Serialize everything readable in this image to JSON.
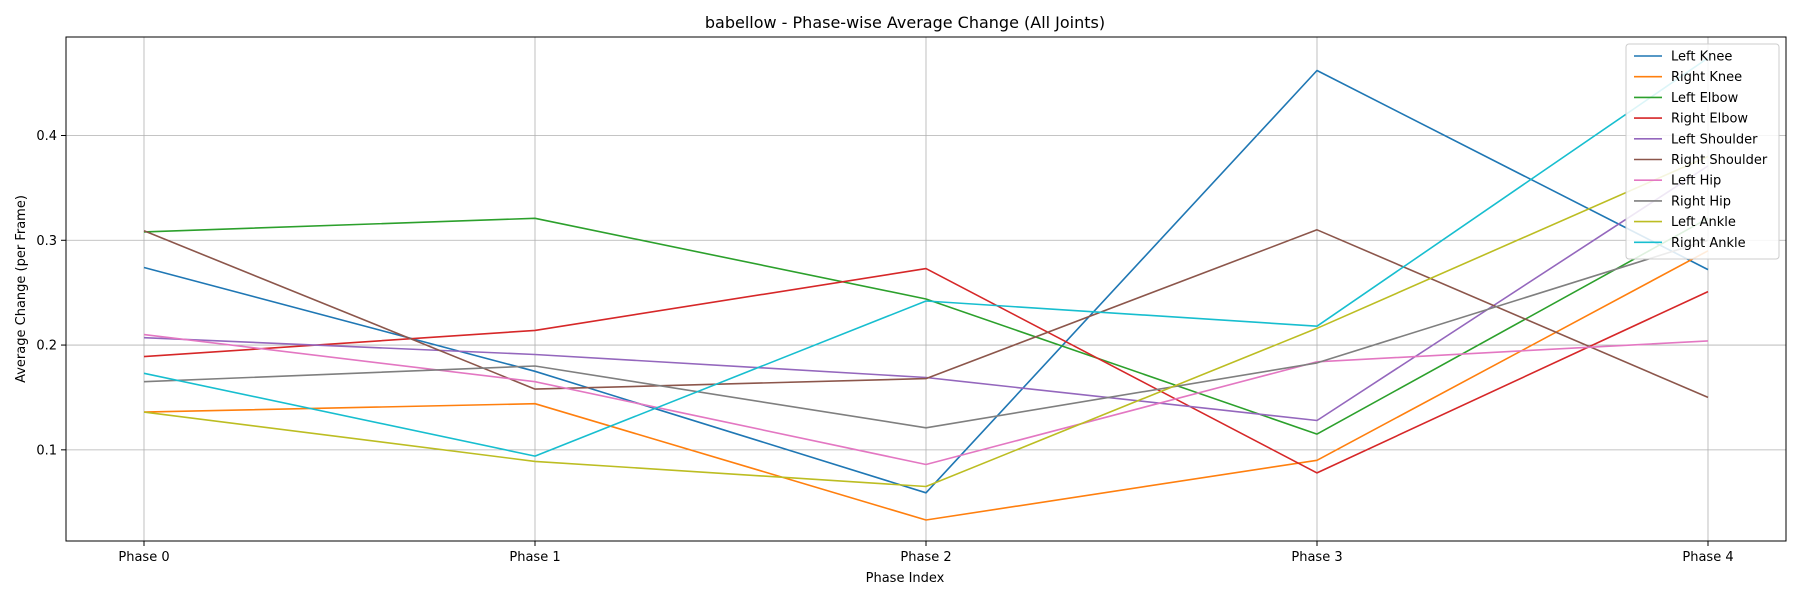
{
  "chart_data": {
    "type": "line",
    "title": "babellow - Phase-wise Average Change (All Joints)",
    "xlabel": "Phase Index",
    "ylabel": "Average Change (per Frame)",
    "categories": [
      "Phase 0",
      "Phase 1",
      "Phase 2",
      "Phase 3",
      "Phase 4"
    ],
    "ylim": [
      0.013,
      0.494
    ],
    "yticks": [
      0.1,
      0.2,
      0.3,
      0.4
    ],
    "ytick_labels": [
      "0.1",
      "0.2",
      "0.3",
      "0.4"
    ],
    "grid": true,
    "legend_position": "top-right",
    "series": [
      {
        "name": "Left Knee",
        "color": "#1f77b4",
        "values": [
          0.274,
          0.175,
          0.059,
          0.462,
          0.272
        ]
      },
      {
        "name": "Right Knee",
        "color": "#ff7f0e",
        "values": [
          0.136,
          0.144,
          0.033,
          0.09,
          0.29
        ]
      },
      {
        "name": "Left Elbow",
        "color": "#2ca02c",
        "values": [
          0.308,
          0.321,
          0.244,
          0.115,
          0.321
        ]
      },
      {
        "name": "Right Elbow",
        "color": "#d62728",
        "values": [
          0.189,
          0.214,
          0.273,
          0.078,
          0.251
        ]
      },
      {
        "name": "Left Shoulder",
        "color": "#9467bd",
        "values": [
          0.207,
          0.191,
          0.169,
          0.128,
          0.371
        ]
      },
      {
        "name": "Right Shoulder",
        "color": "#8c564b",
        "values": [
          0.309,
          0.158,
          0.168,
          0.31,
          0.15
        ]
      },
      {
        "name": "Left Hip",
        "color": "#e377c2",
        "values": [
          0.21,
          0.165,
          0.086,
          0.184,
          0.204
        ]
      },
      {
        "name": "Right Hip",
        "color": "#7f7f7f",
        "values": [
          0.165,
          0.18,
          0.121,
          0.183,
          0.3
        ]
      },
      {
        "name": "Left Ankle",
        "color": "#bcbd22",
        "values": [
          0.136,
          0.089,
          0.065,
          0.216,
          0.38
        ]
      },
      {
        "name": "Right Ankle",
        "color": "#17becf",
        "values": [
          0.173,
          0.094,
          0.242,
          0.218,
          0.474
        ]
      }
    ]
  }
}
